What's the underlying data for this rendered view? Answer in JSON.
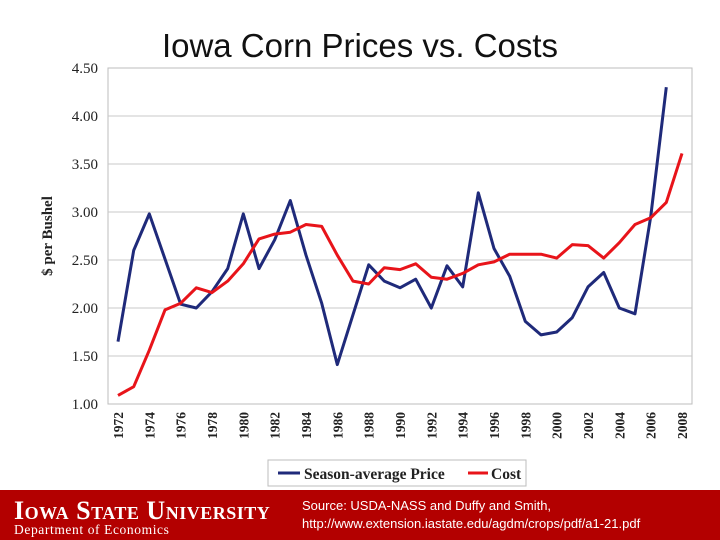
{
  "chart_data": {
    "type": "line",
    "title": "Iowa Corn Prices vs. Costs",
    "xlabel": "",
    "ylabel": "$ per Bushel",
    "ylim": [
      1.0,
      4.5
    ],
    "xlim": [
      1972,
      2008
    ],
    "yticks": [
      "1.00",
      "1.50",
      "2.00",
      "2.50",
      "3.00",
      "3.50",
      "4.00",
      "4.50"
    ],
    "xticks": [
      "1972",
      "1974",
      "1976",
      "1978",
      "1980",
      "1982",
      "1984",
      "1986",
      "1988",
      "1990",
      "1992",
      "1994",
      "1996",
      "1998",
      "2000",
      "2002",
      "2004",
      "2006",
      "2008"
    ],
    "x": [
      1972,
      1973,
      1974,
      1975,
      1976,
      1977,
      1978,
      1979,
      1980,
      1981,
      1982,
      1983,
      1984,
      1985,
      1986,
      1987,
      1988,
      1989,
      1990,
      1991,
      1992,
      1993,
      1994,
      1995,
      1996,
      1997,
      1998,
      1999,
      2000,
      2001,
      2002,
      2003,
      2004,
      2005,
      2006,
      2007,
      2008
    ],
    "series": [
      {
        "name": "Season-average Price",
        "color": "#1f2a7a",
        "values": [
          1.65,
          2.6,
          2.98,
          2.51,
          2.04,
          2.0,
          2.17,
          2.41,
          2.98,
          2.41,
          2.71,
          3.12,
          2.55,
          2.05,
          1.41,
          1.93,
          2.45,
          2.28,
          2.21,
          2.3,
          2.0,
          2.44,
          2.22,
          3.2,
          2.62,
          2.33,
          1.86,
          1.72,
          1.75,
          1.9,
          2.22,
          2.37,
          2.0,
          1.94,
          2.95,
          4.3,
          null
        ]
      },
      {
        "name": "Cost",
        "color": "#e8141a",
        "values": [
          1.09,
          1.18,
          1.56,
          1.98,
          2.05,
          2.21,
          2.16,
          2.28,
          2.46,
          2.72,
          2.77,
          2.79,
          2.87,
          2.85,
          2.55,
          2.28,
          2.25,
          2.42,
          2.4,
          2.46,
          2.32,
          2.3,
          2.36,
          2.45,
          2.48,
          2.56,
          2.56,
          2.56,
          2.52,
          2.66,
          2.65,
          2.52,
          2.68,
          2.87,
          2.94,
          3.1,
          3.61
        ]
      }
    ],
    "legend": "bottom"
  },
  "footer": {
    "institution": "Iowa State University",
    "department": "Department of Economics",
    "source_line1": "Source: USDA-NASS and Duffy and Smith,",
    "source_line2": "http://www.extension.iastate.edu/agdm/crops/pdf/a1-21.pdf"
  }
}
